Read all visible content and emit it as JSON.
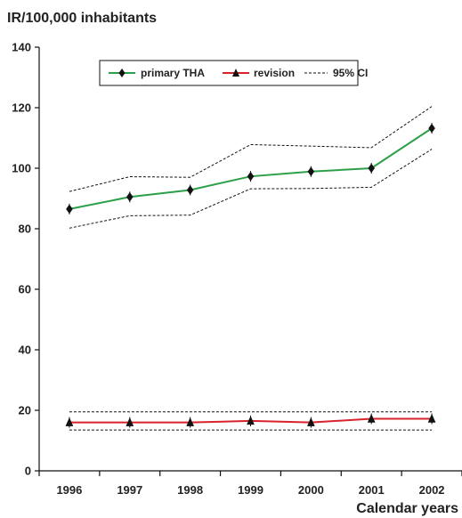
{
  "chart_data": {
    "type": "line",
    "title": "",
    "ylabel": "IR/100,000 inhabitants",
    "xlabel": "Calendar years",
    "categories": [
      "1996",
      "1997",
      "1998",
      "1999",
      "2000",
      "2001",
      "2002"
    ],
    "ylim": [
      0,
      140
    ],
    "yticks": [
      0,
      20,
      40,
      60,
      80,
      100,
      120,
      140
    ],
    "grid": false,
    "legend_position": "top-center",
    "series": [
      {
        "name": "primary THA",
        "marker": "diamond",
        "color": "#2ca048",
        "values": [
          86.5,
          90.5,
          92.8,
          97.3,
          98.9,
          100.0,
          113.2
        ]
      },
      {
        "name": "revision",
        "marker": "triangle",
        "color": "#d9232b",
        "values": [
          16.0,
          16.0,
          16.0,
          16.5,
          16.0,
          17.2,
          17.2
        ]
      }
    ],
    "confidence_bands": {
      "name": "95% CI",
      "style": "dashed",
      "color": "#111111",
      "bands": [
        {
          "lower": [
            80.2,
            84.3,
            84.5,
            93.2,
            93.3,
            93.7,
            106.3
          ],
          "upper": [
            92.3,
            97.2,
            97.0,
            107.8,
            107.3,
            106.8,
            120.4
          ]
        },
        {
          "lower": [
            13.5,
            13.5,
            13.5,
            13.5,
            13.5,
            13.5,
            13.5
          ],
          "upper": [
            19.5,
            19.5,
            19.5,
            19.5,
            19.5,
            19.5,
            19.5
          ]
        }
      ]
    }
  }
}
